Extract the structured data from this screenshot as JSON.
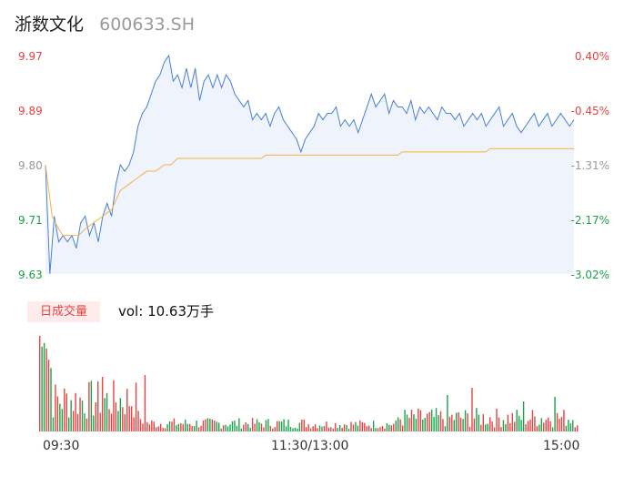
{
  "header": {
    "name": "浙数文化",
    "code": "600633.SH"
  },
  "price_axis": {
    "labels": [
      "9.97",
      "9.89",
      "9.80",
      "9.71",
      "9.63"
    ],
    "percent_labels": [
      "0.40%",
      "-0.45%",
      "-1.31%",
      "-2.17%",
      "-3.02%"
    ]
  },
  "volume": {
    "tab_label": "日成交量",
    "vol_label": "vol:",
    "vol_value": "10.63万手"
  },
  "time_axis": {
    "labels": [
      "09:30",
      "11:30/13:00",
      "15:00"
    ]
  },
  "colors": {
    "price_line": "#4a7fd6",
    "price_fill": "#eef3fc",
    "avg_line": "#f5b342",
    "up": "#e64340",
    "down": "#1aa34a",
    "flat": "#999999",
    "tab_bg": "#fdeceb"
  },
  "chart_data": {
    "type": "line",
    "ylim": [
      9.63,
      9.97
    ],
    "minutes_total": 241,
    "price_anchors": [
      [
        0,
        9.8
      ],
      [
        2,
        9.63
      ],
      [
        4,
        9.72
      ],
      [
        6,
        9.68
      ],
      [
        8,
        9.69
      ],
      [
        10,
        9.68
      ],
      [
        12,
        9.69
      ],
      [
        14,
        9.67
      ],
      [
        16,
        9.71
      ],
      [
        18,
        9.72
      ],
      [
        20,
        9.69
      ],
      [
        22,
        9.71
      ],
      [
        24,
        9.68
      ],
      [
        26,
        9.72
      ],
      [
        28,
        9.74
      ],
      [
        30,
        9.72
      ],
      [
        32,
        9.77
      ],
      [
        34,
        9.8
      ],
      [
        36,
        9.79
      ],
      [
        38,
        9.8
      ],
      [
        40,
        9.82
      ],
      [
        42,
        9.86
      ],
      [
        44,
        9.88
      ],
      [
        46,
        9.89
      ],
      [
        48,
        9.91
      ],
      [
        50,
        9.93
      ],
      [
        52,
        9.94
      ],
      [
        54,
        9.96
      ],
      [
        56,
        9.97
      ],
      [
        58,
        9.93
      ],
      [
        60,
        9.94
      ],
      [
        62,
        9.92
      ],
      [
        64,
        9.95
      ],
      [
        66,
        9.92
      ],
      [
        68,
        9.95
      ],
      [
        70,
        9.9
      ],
      [
        72,
        9.93
      ],
      [
        74,
        9.94
      ],
      [
        76,
        9.92
      ],
      [
        78,
        9.94
      ],
      [
        80,
        9.92
      ],
      [
        82,
        9.94
      ],
      [
        84,
        9.93
      ],
      [
        86,
        9.91
      ],
      [
        88,
        9.9
      ],
      [
        90,
        9.89
      ],
      [
        92,
        9.9
      ],
      [
        94,
        9.87
      ],
      [
        96,
        9.88
      ],
      [
        98,
        9.87
      ],
      [
        100,
        9.88
      ],
      [
        102,
        9.86
      ],
      [
        104,
        9.88
      ],
      [
        106,
        9.89
      ],
      [
        108,
        9.87
      ],
      [
        110,
        9.86
      ],
      [
        112,
        9.85
      ],
      [
        114,
        9.84
      ],
      [
        116,
        9.82
      ],
      [
        118,
        9.84
      ],
      [
        120,
        9.85
      ],
      [
        122,
        9.86
      ],
      [
        124,
        9.88
      ],
      [
        126,
        9.87
      ],
      [
        128,
        9.88
      ],
      [
        130,
        9.88
      ],
      [
        132,
        9.89
      ],
      [
        134,
        9.86
      ],
      [
        136,
        9.87
      ],
      [
        138,
        9.86
      ],
      [
        140,
        9.87
      ],
      [
        142,
        9.85
      ],
      [
        144,
        9.87
      ],
      [
        146,
        9.89
      ],
      [
        148,
        9.91
      ],
      [
        150,
        9.89
      ],
      [
        152,
        9.9
      ],
      [
        154,
        9.91
      ],
      [
        156,
        9.88
      ],
      [
        158,
        9.9
      ],
      [
        160,
        9.89
      ],
      [
        162,
        9.89
      ],
      [
        164,
        9.88
      ],
      [
        166,
        9.9
      ],
      [
        168,
        9.87
      ],
      [
        170,
        9.89
      ],
      [
        172,
        9.88
      ],
      [
        174,
        9.89
      ],
      [
        176,
        9.88
      ],
      [
        178,
        9.87
      ],
      [
        180,
        9.89
      ],
      [
        182,
        9.88
      ],
      [
        184,
        9.88
      ],
      [
        186,
        9.87
      ],
      [
        188,
        9.88
      ],
      [
        190,
        9.86
      ],
      [
        192,
        9.87
      ],
      [
        194,
        9.88
      ],
      [
        196,
        9.87
      ],
      [
        198,
        9.88
      ],
      [
        200,
        9.86
      ],
      [
        202,
        9.87
      ],
      [
        204,
        9.88
      ],
      [
        206,
        9.89
      ],
      [
        208,
        9.86
      ],
      [
        210,
        9.87
      ],
      [
        212,
        9.88
      ],
      [
        214,
        9.86
      ],
      [
        216,
        9.85
      ],
      [
        218,
        9.86
      ],
      [
        220,
        9.87
      ],
      [
        222,
        9.88
      ],
      [
        224,
        9.86
      ],
      [
        226,
        9.87
      ],
      [
        228,
        9.88
      ],
      [
        230,
        9.86
      ],
      [
        232,
        9.87
      ],
      [
        234,
        9.88
      ],
      [
        236,
        9.87
      ],
      [
        238,
        9.86
      ],
      [
        240,
        9.87
      ]
    ],
    "avg_anchors": [
      [
        0,
        9.8
      ],
      [
        3,
        9.72
      ],
      [
        6,
        9.7
      ],
      [
        8,
        9.69
      ],
      [
        15,
        9.69
      ],
      [
        18,
        9.7
      ],
      [
        22,
        9.71
      ],
      [
        26,
        9.72
      ],
      [
        30,
        9.73
      ],
      [
        34,
        9.76
      ],
      [
        38,
        9.77
      ],
      [
        42,
        9.78
      ],
      [
        46,
        9.79
      ],
      [
        50,
        9.79
      ],
      [
        54,
        9.8
      ],
      [
        57,
        9.8
      ],
      [
        60,
        9.81
      ],
      [
        64,
        9.81
      ],
      [
        66,
        9.81
      ],
      [
        98,
        9.81
      ],
      [
        100,
        9.815
      ],
      [
        160,
        9.815
      ],
      [
        162,
        9.82
      ],
      [
        200,
        9.82
      ],
      [
        202,
        9.825
      ],
      [
        240,
        9.825
      ]
    ]
  }
}
